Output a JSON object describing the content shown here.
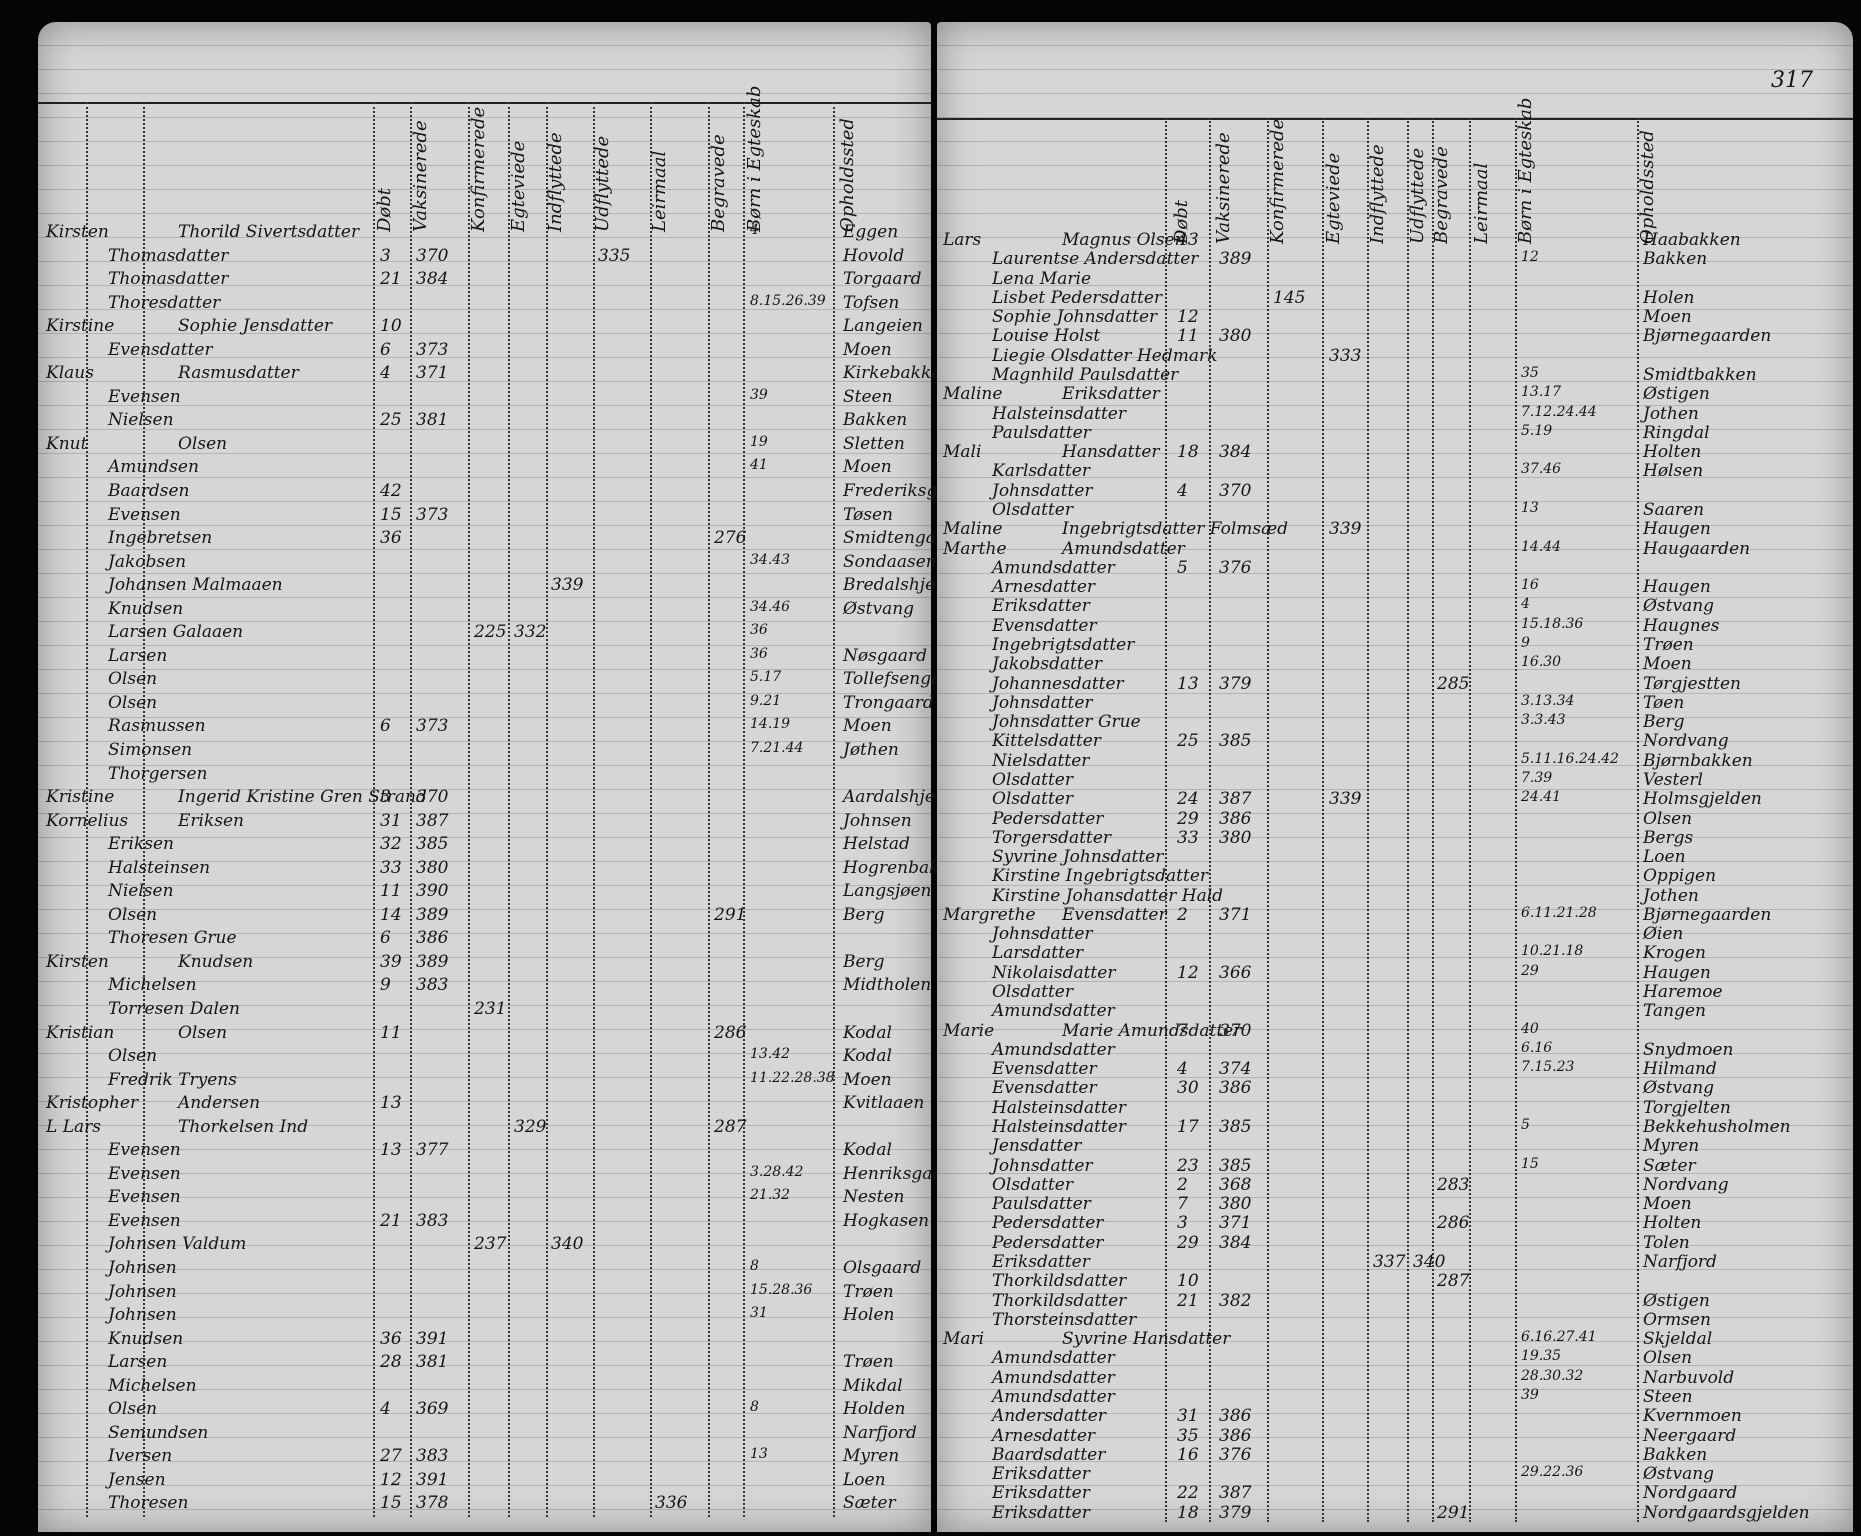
{
  "left": {
    "headers": [
      "Døbt",
      "Vaksinerede",
      "Konfirmerede",
      "Egteviede",
      "Indflyttede",
      "Udflyttede",
      "Leirmaal",
      "Begravede",
      "Børn i Egteskab",
      "Opholdssted"
    ],
    "rows": [
      {
        "f": "Kirsten",
        "n": "Thorild Sivertsdatter",
        "c": 4,
        "p": "Eggen"
      },
      {
        "n": "Thomasdatter",
        "d": 3,
        "v": 370,
        "u": 335,
        "p": "Hovold"
      },
      {
        "n": "Thomasdatter",
        "d": 21,
        "v": 384,
        "p": "Torgaard"
      },
      {
        "n": "Thoresdatter",
        "c": "8.15.26.39",
        "p": "Tofsen"
      },
      {
        "f": "Kirstine",
        "n": "Sophie Jensdatter",
        "d": 10,
        "p": "Langeien"
      },
      {
        "n": "Evensdatter",
        "d": 6,
        "v": 373,
        "p": "Moen"
      },
      {
        "f": "Klaus",
        "n": "Rasmusdatter",
        "d": 4,
        "v": 371,
        "p": "Kirkebakken"
      },
      {
        "n": "Evensen",
        "c": 39,
        "p": "Steen"
      },
      {
        "n": "Nielsen",
        "d": 25,
        "v": 381,
        "p": "Bakken"
      },
      {
        "f": "Knut",
        "n": "Olsen",
        "c": 19,
        "p": "Sletten"
      },
      {
        "n": "Amundsen",
        "c": 41,
        "p": "Moen"
      },
      {
        "n": "Baardsen",
        "d": 42,
        "p": "Frederiksgaard"
      },
      {
        "n": "Evensen",
        "d": 15,
        "v": 373,
        "p": "Tøsen"
      },
      {
        "n": "Ingebretsen",
        "d": 36,
        "b": 276,
        "p": "Smidtengaard"
      },
      {
        "n": "Jakobsen",
        "c": "34.43",
        "p": "Sondaasen"
      },
      {
        "n": "Johansen Malmaaen",
        "i": 339,
        "p": "Bredalshjem"
      },
      {
        "n": "Knudsen",
        "c": "34.46",
        "p": "Østvang"
      },
      {
        "n": "Larsen Galaaen",
        "k": 225,
        "e": 332,
        "c": 36
      },
      {
        "n": "Larsen",
        "c": 36,
        "p": "Nøsgaard"
      },
      {
        "n": "Olsen",
        "c": "5.17",
        "p": "Tollefsengaard"
      },
      {
        "n": "Olsen",
        "c": "9.21",
        "p": "Trongaard"
      },
      {
        "n": "Rasmussen",
        "d": 6,
        "v": 373,
        "c": "14.19",
        "p": "Moen"
      },
      {
        "n": "Simonsen",
        "c": "7.21.44",
        "p": "Jøthen"
      },
      {
        "n": "Thorgersen"
      },
      {
        "f": "Kristine",
        "n": "Ingerid Kristine Gren Strand",
        "d": 3,
        "v": 370,
        "p": "Aardalshjem"
      },
      {
        "f": "Kornelius",
        "n": "Eriksen",
        "d": 31,
        "v": 387,
        "p": "Johnsen"
      },
      {
        "n": "Eriksen",
        "d": 32,
        "v": 385,
        "p": "Helstad"
      },
      {
        "n": "Halsteinsen",
        "d": 33,
        "v": 380,
        "p": "Hogrenbakken"
      },
      {
        "n": "Nielsen",
        "d": 11,
        "v": 390,
        "p": "Langsjøen"
      },
      {
        "n": "Olsen",
        "d": 14,
        "v": 389,
        "b": 291,
        "p": "Berg"
      },
      {
        "n": "Thoresen Grue",
        "d": 6,
        "v": 386
      },
      {
        "f": "Kirsten",
        "n": "Knudsen",
        "d": 39,
        "v": 389,
        "p": "Berg"
      },
      {
        "n": "Michelsen",
        "d": 9,
        "v": 383,
        "p": "Midtholen"
      },
      {
        "n": "Torresen Dalen",
        "k": 231
      },
      {
        "f": "Kristian",
        "n": "Olsen",
        "d": 11,
        "b": 286,
        "p": "Kodal"
      },
      {
        "n": "Olsen",
        "c": "13.42",
        "p": "Kodal"
      },
      {
        "n": "Fredrik Tryens",
        "c": "11.22.28.38",
        "p": "Moen"
      },
      {
        "f": "Kristopher",
        "n": "Andersen",
        "d": 13,
        "p": "Kvitlaaen"
      },
      {
        "f": "L  Lars",
        "n": "Thorkelsen Ind",
        "e": 329,
        "b": 287
      },
      {
        "n": "Evensen",
        "d": 13,
        "v": 377,
        "p": "Kodal"
      },
      {
        "n": "Evensen",
        "c": "3.28.42",
        "p": "Henriksgaard"
      },
      {
        "n": "Evensen",
        "c": "21.32",
        "p": "Nesten"
      },
      {
        "n": "Evensen",
        "d": 21,
        "v": 383,
        "p": "Hogkasen"
      },
      {
        "n": "Johnsen Valdum",
        "k": 237,
        "i": 340
      },
      {
        "n": "Johnsen",
        "c": 8,
        "p": "Olsgaard"
      },
      {
        "n": "Johnsen",
        "c": "15.28.36",
        "p": "Trøen"
      },
      {
        "n": "Johnsen",
        "c": 31,
        "p": "Holen"
      },
      {
        "n": "Knudsen",
        "d": 36,
        "v": 391
      },
      {
        "n": "Larsen",
        "d": 28,
        "v": 381,
        "p": "Trøen"
      },
      {
        "n": "Michelsen",
        "p": "Mikdal"
      },
      {
        "n": "Olsen",
        "d": 4,
        "v": 369,
        "c": 8,
        "p": "Holden"
      },
      {
        "n": "Semundsen",
        "p": "Narfjord"
      },
      {
        "n": "Iversen",
        "d": 27,
        "v": 383,
        "c": 13,
        "p": "Myren"
      },
      {
        "n": "Jensen",
        "d": 12,
        "v": 391,
        "p": "Loen"
      },
      {
        "n": "Thoresen",
        "d": 15,
        "v": 378,
        "l": 336,
        "p": "Sæter"
      }
    ]
  },
  "right": {
    "page_number": "317",
    "headers": [
      "Døbt",
      "Vaksinerede",
      "Konfirmerede",
      "Egteviede",
      "Indflyttede",
      "Udflyttede",
      "Begravede",
      "Leirmaal",
      "Børn i Egteskab",
      "Opholdssted"
    ],
    "rows": [
      {
        "f": "Lars",
        "n": "Magnus Olsen",
        "d": 43,
        "p": "Haabakken"
      },
      {
        "n": "Laurentse Andersdatter",
        "v": 389,
        "c": 12,
        "p": "Bakken"
      },
      {
        "n": "Lena Marie"
      },
      {
        "n": "Lisbet Pedersdatter",
        "k": 145,
        "p": "Holen"
      },
      {
        "n": "Sophie Johnsdatter",
        "d": 12,
        "p": "Moen"
      },
      {
        "n": "Louise Holst",
        "d": 11,
        "v": 380,
        "p": "Bjørnegaarden"
      },
      {
        "n": "Liegie Olsdatter Hedmark",
        "e": 333
      },
      {
        "n": "Magnhild Paulsdatter",
        "c": 35,
        "p": "Smidtbakken"
      },
      {
        "f": "Maline",
        "n": "Eriksdatter",
        "c": "13.17",
        "p": "Østigen"
      },
      {
        "n": "Halsteinsdatter",
        "c": "7.12.24.44",
        "p": "Jothen"
      },
      {
        "n": "Paulsdatter",
        "c": "5.19",
        "p": "Ringdal"
      },
      {
        "f": "Mali",
        "n": "Hansdatter",
        "d": 18,
        "v": 384,
        "p": "Holten"
      },
      {
        "n": "Karlsdatter",
        "c": "37.46",
        "p": "Hølsen"
      },
      {
        "n": "Johnsdatter",
        "d": 4,
        "v": 370
      },
      {
        "n": "Olsdatter",
        "c": 13,
        "p": "Saaren"
      },
      {
        "f": "Maline",
        "n": "Ingebrigtsdatter Folmsæd",
        "e": 339,
        "p": "Haugen"
      },
      {
        "f": "Marthe",
        "n": "Amundsdatter",
        "c": "14.44",
        "p": "Haugaarden"
      },
      {
        "n": "Amundsdatter",
        "d": 5,
        "v": 376
      },
      {
        "n": "Arnesdatter",
        "c": 16,
        "p": "Haugen"
      },
      {
        "n": "Eriksdatter",
        "c": 4,
        "p": "Østvang"
      },
      {
        "n": "Evensdatter",
        "c": "15.18.36",
        "p": "Haugnes"
      },
      {
        "n": "Ingebrigtsdatter",
        "c": 9,
        "p": "Trøen"
      },
      {
        "n": "Jakobsdatter",
        "c": "16.30",
        "p": "Moen"
      },
      {
        "n": "Johannesdatter",
        "d": 13,
        "v": 379,
        "b": 285,
        "p": "Tørgjestten"
      },
      {
        "n": "Johnsdatter",
        "c": "3.13.34",
        "p": "Tøen"
      },
      {
        "n": "Johnsdatter Grue",
        "c": "3.3.43",
        "p": "Berg"
      },
      {
        "n": "Kittelsdatter",
        "d": 25,
        "v": 385,
        "p": "Nordvang"
      },
      {
        "n": "Nielsdatter",
        "c": "5.11.16.24.42",
        "p": "Bjørnbakken"
      },
      {
        "n": "Olsdatter",
        "c": "7.39",
        "p": "Vesterl"
      },
      {
        "n": "Olsdatter",
        "d": 24,
        "v": 387,
        "e": 339,
        "c": "24.41",
        "p": "Holmsgjelden"
      },
      {
        "n": "Pedersdatter",
        "d": 29,
        "v": 386,
        "p": "Olsen"
      },
      {
        "n": "Torgersdatter",
        "d": 33,
        "v": 380,
        "p": "Bergs"
      },
      {
        "n": "Syvrine Johnsdatter",
        "p": "Loen"
      },
      {
        "n": "Kirstine Ingebrigtsdatter",
        "p": "Oppigen"
      },
      {
        "n": "Kirstine Johansdatter Hald",
        "p": "Jothen"
      },
      {
        "f": "Margrethe",
        "n": "Evensdatter",
        "d": 2,
        "v": 371,
        "c": "6.11.21.28",
        "p": "Bjørnegaarden"
      },
      {
        "n": "Johnsdatter",
        "p": "Øien"
      },
      {
        "n": "Larsdatter",
        "c": "10.21.18",
        "p": "Krogen"
      },
      {
        "n": "Nikolaisdatter",
        "d": 12,
        "v": 366,
        "c": 29,
        "p": "Haugen"
      },
      {
        "n": "Olsdatter",
        "p": "Haremoe"
      },
      {
        "n": "Amundsdatter",
        "p": "Tangen"
      },
      {
        "f": "Marie",
        "n": "Marie Amundsdatter",
        "d": 7,
        "v": 370,
        "c": 40
      },
      {
        "n": "Amundsdatter",
        "c": "6.16",
        "p": "Snydmoen"
      },
      {
        "n": "Evensdatter",
        "d": 4,
        "v": 374,
        "c": "7.15.23",
        "p": "Hilmand"
      },
      {
        "n": "Evensdatter",
        "d": 30,
        "v": 386,
        "p": "Østvang"
      },
      {
        "n": "Halsteinsdatter",
        "p": "Torgjelten"
      },
      {
        "n": "Halsteinsdatter",
        "d": 17,
        "v": 385,
        "c": 5,
        "p": "Bekkehusholmen"
      },
      {
        "n": "Jensdatter",
        "p": "Myren"
      },
      {
        "n": "Johnsdatter",
        "d": 23,
        "v": 385,
        "c": 15,
        "p": "Sæter"
      },
      {
        "n": "Olsdatter",
        "d": 2,
        "v": 368,
        "b": 283,
        "p": "Nordvang"
      },
      {
        "n": "Paulsdatter",
        "d": 7,
        "v": 380,
        "p": "Moen"
      },
      {
        "n": "Pedersdatter",
        "d": 3,
        "v": 371,
        "b": 286,
        "p": "Holten"
      },
      {
        "n": "Pedersdatter",
        "d": 29,
        "v": 384,
        "p": "Tolen"
      },
      {
        "n": "Eriksdatter",
        "i": 337,
        "u": 340,
        "p": "Narfjord"
      },
      {
        "n": "Thorkildsdatter",
        "d": 10,
        "b": 287
      },
      {
        "n": "Thorkildsdatter",
        "d": 21,
        "v": 382,
        "p": "Østigen"
      },
      {
        "n": "Thorsteinsdatter",
        "p": "Ormsen"
      },
      {
        "f": "Mari",
        "n": "Syvrine Hansdatter",
        "c": "6.16.27.41",
        "p": "Skjeldal"
      },
      {
        "n": "Amundsdatter",
        "c": "19.35",
        "p": "Olsen"
      },
      {
        "n": "Amundsdatter",
        "c": "28.30.32",
        "p": "Narbuvold"
      },
      {
        "n": "Amundsdatter",
        "c": 39,
        "p": "Steen"
      },
      {
        "n": "Andersdatter",
        "d": 31,
        "v": 386,
        "p": "Kvernmoen"
      },
      {
        "n": "Arnesdatter",
        "d": 35,
        "v": 386,
        "p": "Neergaard"
      },
      {
        "n": "Baardsdatter",
        "d": 16,
        "v": 376,
        "p": "Bakken"
      },
      {
        "n": "Eriksdatter",
        "c": "29.22.36",
        "p": "Østvang"
      },
      {
        "n": "Eriksdatter",
        "d": 22,
        "v": 387,
        "p": "Nordgaard"
      },
      {
        "n": "Eriksdatter",
        "d": 18,
        "v": 379,
        "b": 291,
        "p": "Nordgaardsgjelden"
      }
    ]
  }
}
